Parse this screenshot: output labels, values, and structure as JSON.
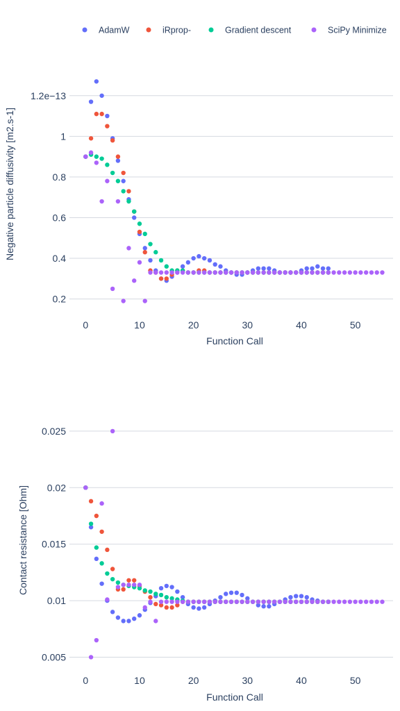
{
  "legend": [
    {
      "name": "AdamW",
      "color": "#636efa"
    },
    {
      "name": "iRprop-",
      "color": "#ef553b"
    },
    {
      "name": "Gradient descent",
      "color": "#00cc96"
    },
    {
      "name": "SciPy Minimize",
      "color": "#ab63fa"
    }
  ],
  "chart_data": [
    {
      "type": "scatter",
      "xlabel": "Function Call",
      "ylabel": "Negative particle diffusivity [m2.s-1]",
      "xlim": [
        -3,
        57
      ],
      "ylim": [
        0.12,
        1.37
      ],
      "x_ticks": [
        0,
        10,
        20,
        30,
        40,
        50
      ],
      "y_ticks": [
        0.2,
        0.4,
        0.6,
        0.8,
        1.0,
        1.2
      ],
      "y_tick_labels": [
        "0.2",
        "0.4",
        "0.6",
        "0.8",
        "1",
        "1.2e−13"
      ],
      "grid": true,
      "series": [
        {
          "name": "AdamW",
          "x": [
            0,
            1,
            2,
            3,
            4,
            5,
            6,
            7,
            8,
            9,
            10,
            11,
            12,
            13,
            14,
            15,
            16,
            17,
            18,
            19,
            20,
            21,
            22,
            23,
            24,
            25,
            26,
            27,
            28,
            29,
            30,
            31,
            32,
            33,
            34,
            35,
            36,
            37,
            38,
            39,
            40,
            41,
            42,
            43,
            44,
            45
          ],
          "y": [
            0.9,
            1.17,
            1.27,
            1.2,
            1.1,
            0.99,
            0.88,
            0.78,
            0.69,
            0.6,
            0.52,
            0.45,
            0.39,
            0.34,
            0.3,
            0.29,
            0.31,
            0.33,
            0.36,
            0.38,
            0.4,
            0.41,
            0.4,
            0.39,
            0.37,
            0.36,
            0.34,
            0.33,
            0.32,
            0.32,
            0.33,
            0.34,
            0.35,
            0.35,
            0.35,
            0.34,
            0.33,
            0.33,
            0.33,
            0.33,
            0.34,
            0.35,
            0.35,
            0.36,
            0.35,
            0.35
          ]
        },
        {
          "name": "iRprop-",
          "x": [
            0,
            1,
            2,
            3,
            4,
            5,
            6,
            7,
            8,
            9,
            10,
            11,
            12,
            13,
            14,
            15,
            16,
            17,
            18,
            19,
            20,
            21,
            22,
            23,
            24,
            25,
            26,
            27,
            28,
            29,
            30,
            31,
            32,
            33,
            34,
            35,
            36,
            37,
            38,
            39,
            40,
            41,
            42,
            43,
            44,
            45
          ],
          "y": [
            0.9,
            0.99,
            1.11,
            1.11,
            1.05,
            0.98,
            0.9,
            0.82,
            0.73,
            0.63,
            0.53,
            0.43,
            0.34,
            0.33,
            0.3,
            0.3,
            0.32,
            0.34,
            0.34,
            0.33,
            0.33,
            0.34,
            0.34,
            0.33,
            0.33,
            0.33,
            0.33,
            0.33,
            0.33,
            0.33,
            0.33,
            0.33,
            0.33,
            0.33,
            0.33,
            0.33,
            0.33,
            0.33,
            0.33,
            0.33,
            0.33,
            0.33,
            0.33,
            0.33,
            0.33,
            0.33
          ]
        },
        {
          "name": "Gradient descent",
          "x": [
            0,
            1,
            2,
            3,
            4,
            5,
            6,
            7,
            8,
            9,
            10,
            11,
            12,
            13,
            14,
            15,
            16,
            17,
            18,
            19,
            20,
            21,
            22,
            23,
            24,
            25,
            26,
            27,
            28,
            29,
            30,
            31,
            32,
            33,
            34,
            35,
            36,
            37,
            38,
            39,
            40,
            41,
            42,
            43,
            44,
            45
          ],
          "y": [
            0.9,
            0.91,
            0.9,
            0.89,
            0.86,
            0.82,
            0.78,
            0.73,
            0.68,
            0.63,
            0.57,
            0.52,
            0.47,
            0.43,
            0.39,
            0.36,
            0.34,
            0.34,
            0.34,
            0.33,
            0.33,
            0.33,
            0.33,
            0.33,
            0.33,
            0.33,
            0.33,
            0.33,
            0.33,
            0.33,
            0.33,
            0.33,
            0.33,
            0.33,
            0.33,
            0.33,
            0.33,
            0.33,
            0.33,
            0.33,
            0.33,
            0.33,
            0.33,
            0.33,
            0.33,
            0.33
          ]
        },
        {
          "name": "SciPy Minimize",
          "x": [
            0,
            1,
            2,
            3,
            4,
            5,
            6,
            7,
            8,
            9,
            10,
            11,
            12,
            13,
            14,
            15,
            16,
            17,
            18,
            19,
            20,
            21,
            22,
            23,
            24,
            25,
            26,
            27,
            28,
            29,
            30,
            31,
            32,
            33,
            34,
            35,
            36,
            37,
            38,
            39,
            40,
            41,
            42,
            43,
            44,
            45,
            46,
            47,
            48,
            49,
            50,
            51,
            52,
            53,
            54,
            55
          ],
          "y": [
            0.9,
            0.92,
            0.87,
            0.68,
            0.78,
            0.25,
            0.68,
            0.19,
            0.45,
            0.29,
            0.38,
            0.19,
            0.33,
            0.33,
            0.33,
            0.33,
            0.33,
            0.33,
            0.33,
            0.33,
            0.33,
            0.33,
            0.33,
            0.33,
            0.33,
            0.33,
            0.33,
            0.33,
            0.33,
            0.33,
            0.33,
            0.33,
            0.33,
            0.33,
            0.33,
            0.33,
            0.33,
            0.33,
            0.33,
            0.33,
            0.33,
            0.33,
            0.33,
            0.33,
            0.33,
            0.33,
            0.33,
            0.33,
            0.33,
            0.33,
            0.33,
            0.33,
            0.33,
            0.33,
            0.33,
            0.33
          ]
        }
      ]
    },
    {
      "type": "scatter",
      "xlabel": "Function Call",
      "ylabel": "Contact resistance [Ohm]",
      "xlim": [
        -3,
        57
      ],
      "ylim": [
        0.0038,
        0.0269
      ],
      "x_ticks": [
        0,
        10,
        20,
        30,
        40,
        50
      ],
      "y_ticks": [
        0.005,
        0.01,
        0.015,
        0.02,
        0.025
      ],
      "y_tick_labels": [
        "0.005",
        "0.01",
        "0.015",
        "0.02",
        "0.025"
      ],
      "grid": true,
      "series": [
        {
          "name": "AdamW",
          "x": [
            0,
            1,
            2,
            3,
            4,
            5,
            6,
            7,
            8,
            9,
            10,
            11,
            12,
            13,
            14,
            15,
            16,
            17,
            18,
            19,
            20,
            21,
            22,
            23,
            24,
            25,
            26,
            27,
            28,
            29,
            30,
            31,
            32,
            33,
            34,
            35,
            36,
            37,
            38,
            39,
            40,
            41,
            42,
            43,
            44,
            45
          ],
          "y": [
            0.02,
            0.0165,
            0.0137,
            0.0115,
            0.01,
            0.009,
            0.0085,
            0.0082,
            0.0082,
            0.0084,
            0.0087,
            0.0092,
            0.0098,
            0.0104,
            0.0111,
            0.0113,
            0.0112,
            0.0108,
            0.0103,
            0.0097,
            0.0094,
            0.0093,
            0.0094,
            0.0097,
            0.01,
            0.0103,
            0.0106,
            0.0107,
            0.0107,
            0.0105,
            0.0102,
            0.0099,
            0.0096,
            0.0095,
            0.0095,
            0.0097,
            0.0099,
            0.0101,
            0.0103,
            0.0104,
            0.0104,
            0.0103,
            0.0101,
            0.01,
            0.0099,
            0.0099
          ]
        },
        {
          "name": "iRprop-",
          "x": [
            0,
            1,
            2,
            3,
            4,
            5,
            6,
            7,
            8,
            9,
            10,
            11,
            12,
            13,
            14,
            15,
            16,
            17,
            18,
            19,
            20,
            21,
            22,
            23,
            24,
            25,
            26,
            27,
            28,
            29,
            30,
            31,
            32,
            33,
            34,
            35,
            36,
            37,
            38,
            39,
            40,
            41,
            42,
            43,
            44,
            45
          ],
          "y": [
            0.02,
            0.0188,
            0.0175,
            0.0161,
            0.0145,
            0.0128,
            0.011,
            0.011,
            0.0118,
            0.0118,
            0.0113,
            0.0108,
            0.0103,
            0.0097,
            0.0096,
            0.0094,
            0.0094,
            0.0096,
            0.0099,
            0.0099,
            0.0099,
            0.0099,
            0.0099,
            0.0099,
            0.0099,
            0.0099,
            0.0099,
            0.0099,
            0.0099,
            0.0099,
            0.0099,
            0.0099,
            0.0099,
            0.0099,
            0.0099,
            0.0099,
            0.0099,
            0.0099,
            0.0099,
            0.0099,
            0.0099,
            0.0099,
            0.0099,
            0.0099,
            0.0099,
            0.0099
          ]
        },
        {
          "name": "Gradient descent",
          "x": [
            0,
            1,
            2,
            3,
            4,
            5,
            6,
            7,
            8,
            9,
            10,
            11,
            12,
            13,
            14,
            15,
            16,
            17,
            18,
            19,
            20,
            21,
            22,
            23,
            24,
            25,
            26,
            27,
            28,
            29,
            30,
            31,
            32,
            33,
            34,
            35,
            36,
            37,
            38,
            39,
            40,
            41,
            42,
            43,
            44,
            45
          ],
          "y": [
            0.02,
            0.0168,
            0.0147,
            0.0133,
            0.0124,
            0.0119,
            0.0116,
            0.0114,
            0.0113,
            0.0112,
            0.0111,
            0.0109,
            0.0108,
            0.0106,
            0.0105,
            0.0103,
            0.0102,
            0.0101,
            0.01,
            0.0099,
            0.0099,
            0.0099,
            0.0099,
            0.0099,
            0.0099,
            0.0099,
            0.0099,
            0.0099,
            0.0099,
            0.0099,
            0.0099,
            0.0099,
            0.0099,
            0.0099,
            0.0099,
            0.0099,
            0.0099,
            0.0099,
            0.0099,
            0.0099,
            0.0099,
            0.0099,
            0.0099,
            0.0099,
            0.0099,
            0.0099
          ]
        },
        {
          "name": "SciPy Minimize",
          "x": [
            0,
            1,
            2,
            3,
            4,
            5,
            6,
            7,
            8,
            9,
            10,
            11,
            12,
            13,
            14,
            15,
            16,
            17,
            18,
            19,
            20,
            21,
            22,
            23,
            24,
            25,
            26,
            27,
            28,
            29,
            30,
            31,
            32,
            33,
            34,
            35,
            36,
            37,
            38,
            39,
            40,
            41,
            42,
            43,
            44,
            45,
            46,
            47,
            48,
            49,
            50,
            51,
            52,
            53,
            54,
            55
          ],
          "y": [
            0.02,
            0.005,
            0.0065,
            0.0186,
            0.0101,
            0.025,
            0.0112,
            0.0114,
            0.0114,
            0.0114,
            0.0114,
            0.0094,
            0.0099,
            0.0082,
            0.0099,
            0.0099,
            0.0099,
            0.0099,
            0.0099,
            0.0099,
            0.0099,
            0.0099,
            0.0099,
            0.0099,
            0.0099,
            0.0099,
            0.0099,
            0.0099,
            0.0099,
            0.0099,
            0.0099,
            0.0099,
            0.0099,
            0.0099,
            0.0099,
            0.0099,
            0.0099,
            0.0099,
            0.0099,
            0.0099,
            0.0099,
            0.0099,
            0.0099,
            0.0099,
            0.0099,
            0.0099,
            0.0099,
            0.0099,
            0.0099,
            0.0099,
            0.0099,
            0.0099,
            0.0099,
            0.0099,
            0.0099,
            0.0099
          ]
        }
      ]
    }
  ]
}
